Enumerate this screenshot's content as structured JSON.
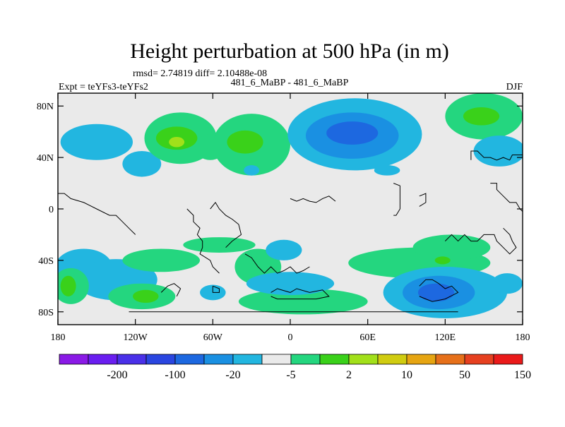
{
  "chart_data": {
    "type": "contour-map",
    "title": "Height perturbation at 500 hPa (in m)",
    "stats": "rmsd= 2.74819 diff= 2.10488e-08",
    "left_label": "Expt = teYFs3-teYFs2",
    "center_label": "481_6_MaBP - 481_6_MaBP",
    "right_label": "DJF",
    "xlim": [
      -180,
      180
    ],
    "ylim": [
      -90,
      90
    ],
    "x_ticks": [
      {
        "lon": -180,
        "label": "180"
      },
      {
        "lon": -120,
        "label": "120W"
      },
      {
        "lon": -60,
        "label": "60W"
      },
      {
        "lon": 0,
        "label": "0"
      },
      {
        "lon": 60,
        "label": "60E"
      },
      {
        "lon": 120,
        "label": "120E"
      },
      {
        "lon": 180,
        "label": "180"
      }
    ],
    "y_ticks": [
      {
        "lat": 80,
        "label": "80N"
      },
      {
        "lat": 40,
        "label": "40N"
      },
      {
        "lat": 0,
        "label": "0"
      },
      {
        "lat": -40,
        "label": "40S"
      },
      {
        "lat": -80,
        "label": "80S"
      }
    ],
    "colorbar": {
      "colors": [
        "#8a1ae6",
        "#6a1ef0",
        "#4a30e8",
        "#2a46e0",
        "#1d68e0",
        "#1a90e2",
        "#22b6e0",
        "#eaeaea",
        "#24d67f",
        "#3ad11a",
        "#a2e01a",
        "#d0cc10",
        "#e6a512",
        "#e6701a",
        "#e64020",
        "#ea1a1a"
      ],
      "labels": [
        {
          "after": 1,
          "text": "-200"
        },
        {
          "after": 3,
          "text": "-100"
        },
        {
          "after": 5,
          "text": "-20"
        },
        {
          "after": 7,
          "text": "-5"
        },
        {
          "after": 9,
          "text": "2"
        },
        {
          "after": 11,
          "text": "10"
        },
        {
          "after": 13,
          "text": "50"
        },
        {
          "after": 15,
          "text": "150"
        }
      ]
    },
    "fields": [
      {
        "level": "cyan",
        "lon": -150,
        "lat": 52,
        "rx": 28,
        "ry": 14
      },
      {
        "level": "cyan",
        "lon": -115,
        "lat": 35,
        "rx": 15,
        "ry": 10
      },
      {
        "level": "green",
        "lon": -85,
        "lat": 55,
        "rx": 28,
        "ry": 20
      },
      {
        "level": "green",
        "lon": -30,
        "lat": 50,
        "rx": 30,
        "ry": 24
      },
      {
        "level": "lgreen",
        "lon": -88,
        "lat": 55,
        "rx": 16,
        "ry": 9
      },
      {
        "level": "lgreen",
        "lon": -35,
        "lat": 52,
        "rx": 14,
        "ry": 9
      },
      {
        "level": "yellow",
        "lon": -88,
        "lat": 52,
        "rx": 6,
        "ry": 4
      },
      {
        "level": "green",
        "lon": -62,
        "lat": 48,
        "rx": 12,
        "ry": 10
      },
      {
        "level": "cyan",
        "lon": 50,
        "lat": 58,
        "rx": 52,
        "ry": 28
      },
      {
        "level": "lblue",
        "lon": 48,
        "lat": 57,
        "rx": 36,
        "ry": 18
      },
      {
        "level": "blue",
        "lon": 48,
        "lat": 59,
        "rx": 20,
        "ry": 9
      },
      {
        "level": "cyan",
        "lon": 75,
        "lat": 30,
        "rx": 10,
        "ry": 4
      },
      {
        "level": "green",
        "lon": 150,
        "lat": 72,
        "rx": 30,
        "ry": 18
      },
      {
        "level": "lgreen",
        "lon": 148,
        "lat": 72,
        "rx": 14,
        "ry": 7
      },
      {
        "level": "cyan",
        "lon": 162,
        "lat": 45,
        "rx": 20,
        "ry": 12
      },
      {
        "level": "cyan",
        "lon": -30,
        "lat": 30,
        "rx": 6,
        "ry": 4
      },
      {
        "level": "cyan",
        "lon": -160,
        "lat": -45,
        "rx": 22,
        "ry": 14
      },
      {
        "level": "cyan",
        "lon": -135,
        "lat": -55,
        "rx": 32,
        "ry": 16
      },
      {
        "level": "green",
        "lon": -170,
        "lat": -60,
        "rx": 14,
        "ry": 14
      },
      {
        "level": "lgreen",
        "lon": -172,
        "lat": -60,
        "rx": 6,
        "ry": 8
      },
      {
        "level": "green",
        "lon": -115,
        "lat": -68,
        "rx": 26,
        "ry": 10
      },
      {
        "level": "lgreen",
        "lon": -112,
        "lat": -68,
        "rx": 10,
        "ry": 5
      },
      {
        "level": "green",
        "lon": -100,
        "lat": -40,
        "rx": 30,
        "ry": 9
      },
      {
        "level": "green",
        "lon": -55,
        "lat": -28,
        "rx": 28,
        "ry": 6
      },
      {
        "level": "cyan",
        "lon": -60,
        "lat": -65,
        "rx": 10,
        "ry": 6
      },
      {
        "level": "green",
        "lon": -25,
        "lat": -45,
        "rx": 18,
        "ry": 14
      },
      {
        "level": "green",
        "lon": 10,
        "lat": -72,
        "rx": 50,
        "ry": 10
      },
      {
        "level": "cyan",
        "lon": -5,
        "lat": -32,
        "rx": 14,
        "ry": 8
      },
      {
        "level": "cyan",
        "lon": 0,
        "lat": -58,
        "rx": 34,
        "ry": 9
      },
      {
        "level": "green",
        "lon": 100,
        "lat": -42,
        "rx": 55,
        "ry": 12
      },
      {
        "level": "green",
        "lon": 125,
        "lat": -30,
        "rx": 30,
        "ry": 10
      },
      {
        "level": "lgreen",
        "lon": 118,
        "lat": -40,
        "rx": 6,
        "ry": 3
      },
      {
        "level": "cyan",
        "lon": 120,
        "lat": -65,
        "rx": 48,
        "ry": 20
      },
      {
        "level": "lblue",
        "lon": 115,
        "lat": -65,
        "rx": 28,
        "ry": 13
      },
      {
        "level": "blue",
        "lon": 113,
        "lat": -65,
        "rx": 14,
        "ry": 7
      },
      {
        "level": "cyan",
        "lon": 168,
        "lat": -58,
        "rx": 12,
        "ry": 8
      }
    ],
    "level_colors": {
      "cyan": "#22b6e0",
      "lblue": "#1a90e2",
      "blue": "#1d68e0",
      "green": "#24d67f",
      "lgreen": "#3ad11a",
      "yellow": "#a2e01a"
    },
    "coastlines": [
      [
        [
          -180,
          12
        ],
        [
          -175,
          12
        ],
        [
          -170,
          8
        ],
        [
          -160,
          5
        ],
        [
          -150,
          0
        ],
        [
          -140,
          -5
        ],
        [
          -135,
          -5
        ],
        [
          -130,
          -10
        ],
        [
          -125,
          -15
        ],
        [
          -120,
          -20
        ]
      ],
      [
        [
          -80,
          0
        ],
        [
          -75,
          -5
        ],
        [
          -75,
          -10
        ],
        [
          -70,
          -15
        ],
        [
          -72,
          -20
        ],
        [
          -68,
          -25
        ],
        [
          -68,
          -30
        ],
        [
          -70,
          -35
        ],
        [
          -62,
          -40
        ],
        [
          -60,
          -45
        ],
        [
          -55,
          -50
        ]
      ],
      [
        [
          -62,
          0
        ],
        [
          -58,
          5
        ],
        [
          -55,
          0
        ],
        [
          -50,
          -5
        ],
        [
          -45,
          -8
        ],
        [
          -40,
          -12
        ],
        [
          -38,
          -20
        ],
        [
          -45,
          -25
        ],
        [
          -50,
          -30
        ]
      ],
      [
        [
          -35,
          -35
        ],
        [
          -30,
          -38
        ],
        [
          -25,
          -45
        ],
        [
          -20,
          -50
        ],
        [
          -15,
          -45
        ],
        [
          -10,
          -50
        ],
        [
          -5,
          -48
        ],
        [
          0,
          -45
        ],
        [
          5,
          -50
        ],
        [
          10,
          -48
        ],
        [
          15,
          -45
        ]
      ],
      [
        [
          0,
          8
        ],
        [
          5,
          6
        ],
        [
          10,
          8
        ],
        [
          15,
          6
        ],
        [
          20,
          5
        ],
        [
          25,
          8
        ],
        [
          30,
          10
        ],
        [
          35,
          6
        ]
      ],
      [
        [
          80,
          20
        ],
        [
          85,
          18
        ],
        [
          85,
          0
        ],
        [
          82,
          -5
        ],
        [
          80,
          -5
        ]
      ],
      [
        [
          100,
          10
        ],
        [
          105,
          12
        ],
        [
          105,
          5
        ],
        [
          100,
          2
        ]
      ],
      [
        [
          140,
          38
        ],
        [
          140,
          45
        ],
        [
          145,
          45
        ],
        [
          150,
          40
        ],
        [
          155,
          40
        ],
        [
          160,
          38
        ],
        [
          165,
          40
        ],
        [
          170,
          38
        ],
        [
          172,
          42
        ],
        [
          180,
          42
        ]
      ],
      [
        [
          155,
          20
        ],
        [
          160,
          20
        ],
        [
          160,
          15
        ],
        [
          165,
          10
        ],
        [
          170,
          5
        ],
        [
          175,
          5
        ],
        [
          178,
          0
        ],
        [
          180,
          -2
        ]
      ],
      [
        [
          165,
          -15
        ],
        [
          170,
          -20
        ],
        [
          172,
          -25
        ],
        [
          175,
          -30
        ],
        [
          170,
          -35
        ],
        [
          165,
          -30
        ],
        [
          160,
          -25
        ],
        [
          158,
          -20
        ],
        [
          150,
          -20
        ],
        [
          145,
          -25
        ],
        [
          140,
          -25
        ],
        [
          135,
          -20
        ],
        [
          130,
          -25
        ],
        [
          125,
          -20
        ],
        [
          120,
          -25
        ]
      ],
      [
        [
          100,
          -60
        ],
        [
          105,
          -55
        ],
        [
          110,
          -55
        ],
        [
          115,
          -58
        ],
        [
          120,
          -62
        ],
        [
          125,
          -60
        ],
        [
          130,
          -65
        ],
        [
          120,
          -70
        ],
        [
          110,
          -72
        ],
        [
          105,
          -70
        ],
        [
          100,
          -68
        ]
      ],
      [
        [
          -15,
          -65
        ],
        [
          -10,
          -62
        ],
        [
          0,
          -65
        ],
        [
          5,
          -62
        ],
        [
          15,
          -65
        ],
        [
          25,
          -63
        ],
        [
          30,
          -68
        ],
        [
          20,
          -70
        ],
        [
          10,
          -70
        ],
        [
          0,
          -70
        ],
        [
          -10,
          -70
        ],
        [
          -15,
          -68
        ]
      ],
      [
        [
          -100,
          -65
        ],
        [
          -95,
          -60
        ],
        [
          -90,
          -58
        ],
        [
          -85,
          -62
        ],
        [
          -88,
          -68
        ]
      ],
      [
        [
          -60,
          -60
        ],
        [
          -55,
          -62
        ],
        [
          -55,
          -65
        ],
        [
          -60,
          -65
        ],
        [
          -60,
          -60
        ]
      ],
      [
        [
          -125,
          -80
        ],
        [
          -100,
          -80
        ],
        [
          -80,
          -80
        ],
        [
          -60,
          -80
        ],
        [
          -40,
          -80
        ],
        [
          -20,
          -80
        ],
        [
          0,
          -80
        ],
        [
          20,
          -80
        ],
        [
          40,
          -80
        ],
        [
          60,
          -80
        ],
        [
          80,
          -80
        ],
        [
          100,
          -80
        ],
        [
          120,
          -80
        ],
        [
          130,
          -80
        ]
      ]
    ]
  }
}
